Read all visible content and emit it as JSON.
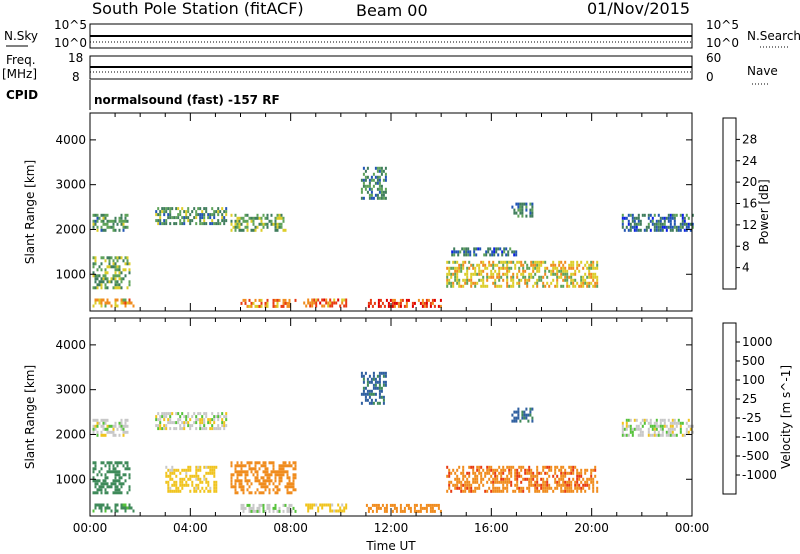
{
  "header": {
    "station": "South Pole Station (fitACF)",
    "beam": "Beam 00",
    "date": "01/Nov/2015"
  },
  "strip_panels": {
    "nsky_label": "N.Sky",
    "nsearch_label": "N.Search",
    "freq_label": "Freq.",
    "freq_unit": "[MHz]",
    "nave_label": "Nave",
    "cpid_label": "CPID",
    "noise_ticks_left": [
      "10^5",
      "10^0"
    ],
    "noise_ticks_right": [
      "10^5",
      "10^0"
    ],
    "freq_ticks": [
      "18",
      "8"
    ],
    "nave_ticks": [
      "60",
      "0"
    ],
    "cpid_text": "normalsound (fast) -157 RF"
  },
  "chart_data": [
    {
      "type": "heatmap",
      "title": "Power",
      "ylabel": "Slant Range [km]",
      "colorbar_label": "Power [dB]",
      "ylim": [
        180,
        4600
      ],
      "xlim": [
        0,
        24
      ],
      "yticks": [
        "1000",
        "2000",
        "3000",
        "4000"
      ],
      "colorbar_ticks": [
        "4",
        "8",
        "12",
        "16",
        "20",
        "24",
        "28"
      ],
      "colorbar_colors": [
        "#0a1ee6",
        "#2255b4",
        "#3f7d5c",
        "#5fa35a",
        "#dccd2a",
        "#f08c1e",
        "#e83a12",
        "#e00000"
      ],
      "echo_regions": [
        {
          "t": [
            0.1,
            1.8
          ],
          "r": [
            300,
            460
          ],
          "value": 20
        },
        {
          "t": [
            0.1,
            1.6
          ],
          "r": [
            700,
            1400
          ],
          "value": 14
        },
        {
          "t": [
            0.1,
            1.5
          ],
          "r": [
            1950,
            2350
          ],
          "value": 12
        },
        {
          "t": [
            2.6,
            5.4
          ],
          "r": [
            2100,
            2500
          ],
          "value": 12
        },
        {
          "t": [
            5.6,
            7.8
          ],
          "r": [
            1950,
            2350
          ],
          "value": 14
        },
        {
          "t": [
            6.0,
            8.2
          ],
          "r": [
            300,
            450
          ],
          "value": 22
        },
        {
          "t": [
            8.5,
            10.2
          ],
          "r": [
            300,
            460
          ],
          "value": 24
        },
        {
          "t": [
            10.8,
            11.8
          ],
          "r": [
            2700,
            3400
          ],
          "value": 10
        },
        {
          "t": [
            11.0,
            14.0
          ],
          "r": [
            300,
            450
          ],
          "value": 26
        },
        {
          "t": [
            14.2,
            20.2
          ],
          "r": [
            700,
            1300
          ],
          "value": 18
        },
        {
          "t": [
            14.4,
            17.0
          ],
          "r": [
            1400,
            1600
          ],
          "value": 8
        },
        {
          "t": [
            16.8,
            17.6
          ],
          "r": [
            2300,
            2600
          ],
          "value": 10
        },
        {
          "t": [
            21.2,
            24.0
          ],
          "r": [
            2000,
            2350
          ],
          "value": 8
        }
      ]
    },
    {
      "type": "heatmap",
      "title": "Velocity",
      "ylabel": "Slant Range [km]",
      "xlabel": "Time UT",
      "colorbar_label": "Velocity [m s^-1]",
      "ylim": [
        180,
        4600
      ],
      "xlim": [
        0,
        24
      ],
      "yticks": [
        "1000",
        "2000",
        "3000",
        "4000"
      ],
      "xticks": [
        "00:00",
        "04:00",
        "08:00",
        "12:00",
        "16:00",
        "20:00",
        "00:00"
      ],
      "colorbar_ticks": [
        "1000",
        "500",
        "100",
        "25",
        "-25",
        "-100",
        "-500",
        "-1000"
      ],
      "colorbar_colors": [
        "#1030b8",
        "#2f5fa0",
        "#3f8a5a",
        "#55c23a",
        "#c8c8c8",
        "#f0c41e",
        "#f08c1e",
        "#e83a12",
        "#e00000"
      ],
      "echo_regions": [
        {
          "t": [
            0.1,
            1.8
          ],
          "r": [
            300,
            460
          ],
          "value": 150
        },
        {
          "t": [
            0.1,
            1.6
          ],
          "r": [
            700,
            1400
          ],
          "value": 300
        },
        {
          "t": [
            0.1,
            1.5
          ],
          "r": [
            1950,
            2350
          ],
          "value": 0
        },
        {
          "t": [
            2.6,
            5.4
          ],
          "r": [
            2100,
            2500
          ],
          "value": 0
        },
        {
          "t": [
            3.0,
            5.0
          ],
          "r": [
            700,
            1300
          ],
          "value": -60
        },
        {
          "t": [
            5.6,
            8.2
          ],
          "r": [
            700,
            1400
          ],
          "value": -300
        },
        {
          "t": [
            6.0,
            8.2
          ],
          "r": [
            300,
            450
          ],
          "value": 20
        },
        {
          "t": [
            8.5,
            10.2
          ],
          "r": [
            300,
            460
          ],
          "value": -60
        },
        {
          "t": [
            10.8,
            11.8
          ],
          "r": [
            2700,
            3400
          ],
          "value": 600
        },
        {
          "t": [
            11.0,
            14.0
          ],
          "r": [
            300,
            450
          ],
          "value": -300
        },
        {
          "t": [
            14.2,
            20.2
          ],
          "r": [
            700,
            1300
          ],
          "value": -400
        },
        {
          "t": [
            16.8,
            17.6
          ],
          "r": [
            2300,
            2600
          ],
          "value": 600
        },
        {
          "t": [
            21.2,
            24.0
          ],
          "r": [
            2000,
            2350
          ],
          "value": 0
        }
      ]
    }
  ]
}
